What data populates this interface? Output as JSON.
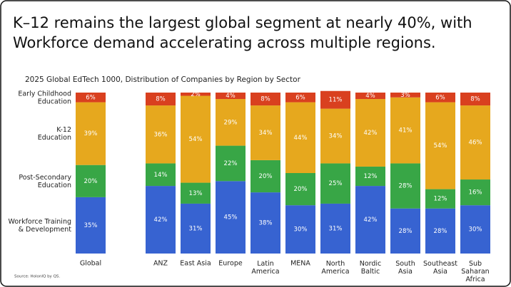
{
  "chart_data": {
    "type": "stacked-bar",
    "title": "K–12 remains the largest global segment at nearly 40%, with\nWorkforce demand accelerating across multiple regions.",
    "subtitle": "2025 Global EdTech 1000, Distribution of Companies by Region by Sector",
    "source": "Source: HolonIQ by QS.",
    "categories": [
      "Global",
      "ANZ",
      "East Asia",
      "Europe",
      "Latin\nAmerica",
      "MENA",
      "North\nAmerica",
      "Nordic\nBaltic",
      "South\nAsia",
      "Southeast\nAsia",
      "Sub\nSaharan\nAfrica"
    ],
    "ylim": [
      0,
      100
    ],
    "series": [
      {
        "name": "Workforce Training\n& Development",
        "color": "#3763d1",
        "values": [
          35,
          42,
          31,
          45,
          38,
          30,
          31,
          42,
          28,
          28,
          30
        ],
        "value_labels": [
          "35%",
          "42%",
          "31%",
          "45%",
          "38%",
          "30%",
          "31%",
          "42%",
          "28%",
          "28%",
          "30%"
        ]
      },
      {
        "name": "Post-Secondary\nEducation",
        "color": "#38a646",
        "values": [
          20,
          14,
          13,
          22,
          20,
          20,
          25,
          12,
          28,
          12,
          16
        ],
        "value_labels": [
          "20%",
          "14%",
          "13%",
          "22%",
          "20%",
          "20%",
          "25%",
          "12%",
          "28%",
          "12%",
          "16%"
        ]
      },
      {
        "name": "K-12\nEducation",
        "color": "#e6a81e",
        "values": [
          39,
          36,
          54,
          29,
          34,
          44,
          34,
          42,
          41,
          54,
          46
        ],
        "value_labels": [
          "39%",
          "36%",
          "54%",
          "29%",
          "34%",
          "44%",
          "34%",
          "42%",
          "41%",
          "54%",
          "46%"
        ]
      },
      {
        "name": "Early Childhood\nEducation",
        "color": "#d9401f",
        "values": [
          6,
          8,
          2,
          4,
          8,
          6,
          11,
          4,
          3,
          6,
          8
        ],
        "value_labels": [
          "6%",
          "8%",
          "2%",
          "4%",
          "8%",
          "6%",
          "11%",
          "4%",
          "3%",
          "6%",
          "8%"
        ]
      }
    ]
  }
}
